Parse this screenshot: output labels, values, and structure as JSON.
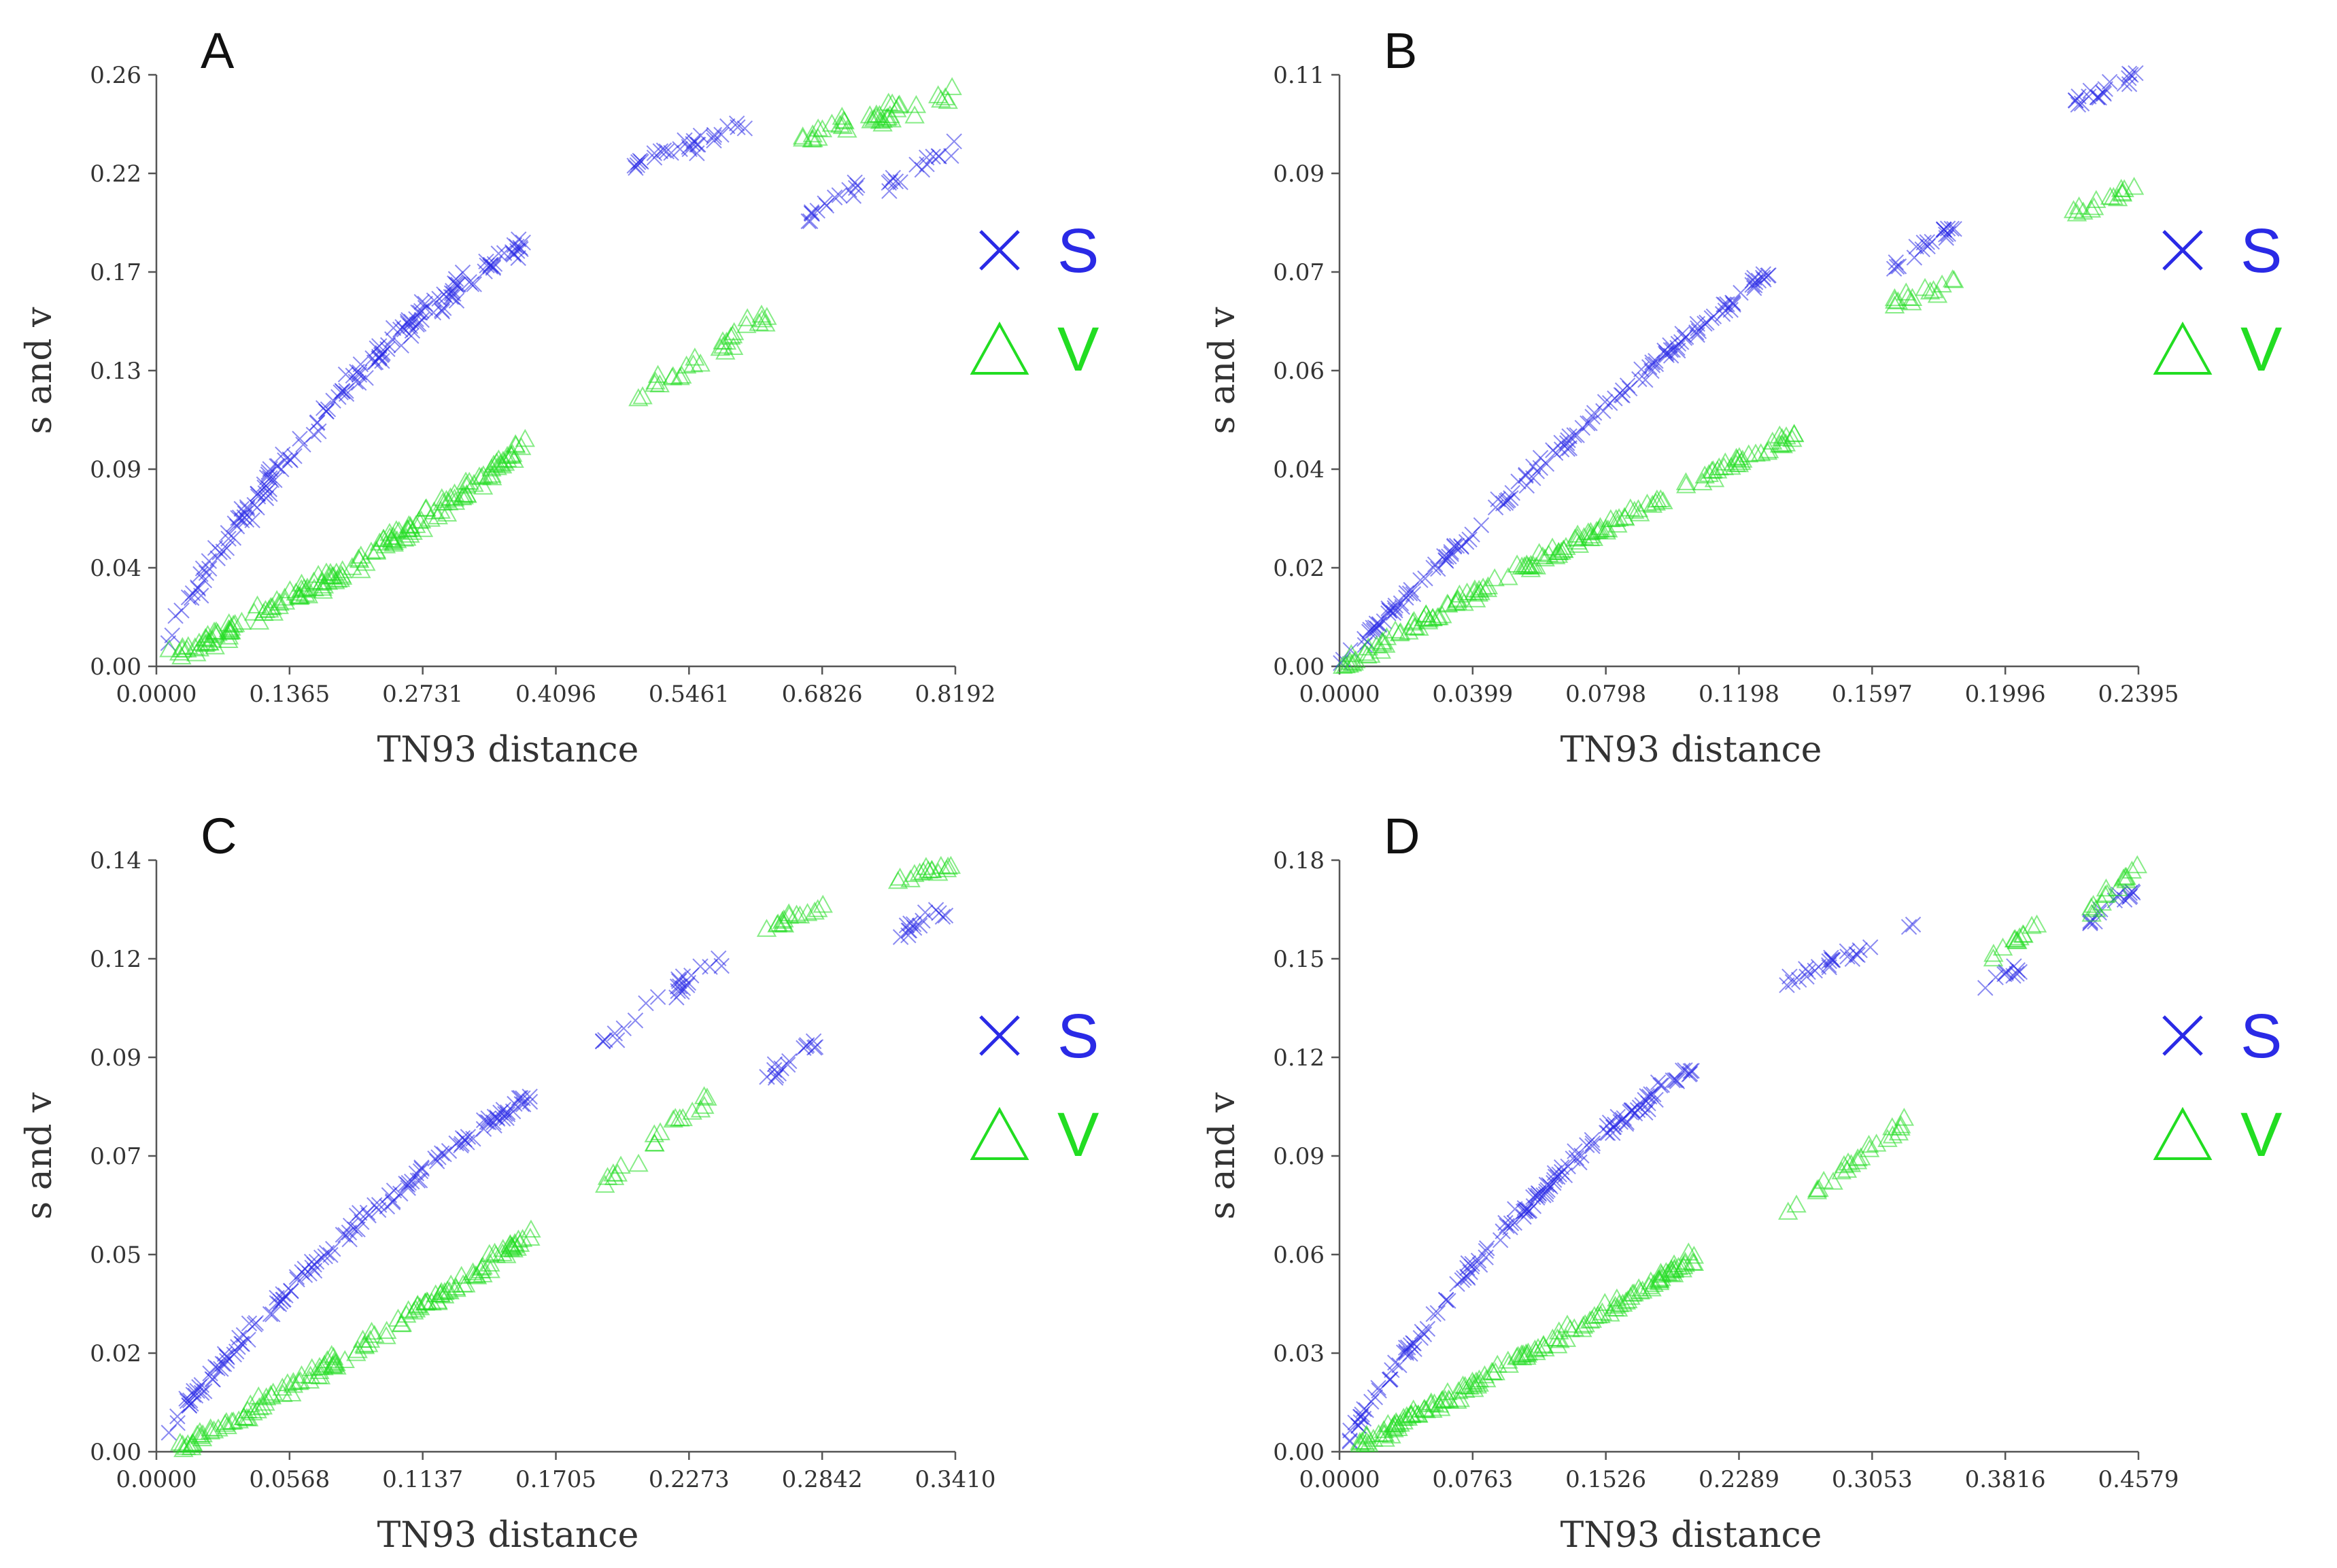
{
  "colors": {
    "S": "#2a2ae6",
    "V": "#22dd22"
  },
  "legend": [
    {
      "label": "S",
      "marker": "cross",
      "icon": "cross-icon"
    },
    {
      "label": "V",
      "marker": "triangle",
      "icon": "triangle-icon"
    }
  ],
  "chart_data": [
    {
      "id": "A",
      "type": "scatter",
      "title": "A",
      "xlabel": "TN93 distance",
      "ylabel": "s and v",
      "xlim": [
        0,
        0.8192
      ],
      "ylim": [
        0,
        0.26
      ],
      "xticks": [
        "0.0000",
        "0.1365",
        "0.2731",
        "0.4096",
        "0.5461",
        "0.6826",
        "0.8192"
      ],
      "yticks": [
        "0.00",
        "0.04",
        "0.09",
        "0.13",
        "0.17",
        "0.22",
        "0.26"
      ],
      "series": [
        {
          "name": "S",
          "clusters": [
            {
              "x": [
                0.01,
                0.38
              ],
              "y0": 0.012,
              "y1": 0.185,
              "n": 170,
              "curve": 0.55,
              "noise": 0.008
            },
            {
              "x": [
                0.49,
                0.61
              ],
              "y0": 0.222,
              "y1": 0.238,
              "n": 30,
              "noise": 0.006
            },
            {
              "x": [
                0.66,
                0.72
              ],
              "y0": 0.195,
              "y1": 0.212,
              "n": 15,
              "noise": 0.005
            },
            {
              "x": [
                0.75,
                0.82
              ],
              "y0": 0.212,
              "y1": 0.228,
              "n": 15,
              "noise": 0.005
            }
          ]
        },
        {
          "name": "V",
          "clusters": [
            {
              "x": [
                0.01,
                0.38
              ],
              "y0": 0.004,
              "y1": 0.098,
              "n": 170,
              "curve": -0.3,
              "noise": 0.006
            },
            {
              "x": [
                0.49,
                0.63
              ],
              "y0": 0.118,
              "y1": 0.155,
              "n": 30,
              "noise": 0.006
            },
            {
              "x": [
                0.66,
                0.82
              ],
              "y0": 0.232,
              "y1": 0.252,
              "n": 40,
              "noise": 0.006
            }
          ]
        }
      ]
    },
    {
      "id": "B",
      "type": "scatter",
      "title": "B",
      "xlabel": "TN93 distance",
      "ylabel": "s and v",
      "xlim": [
        0,
        0.2395
      ],
      "ylim": [
        0,
        0.11
      ],
      "xticks": [
        "0.0000",
        "0.0399",
        "0.0798",
        "0.1198",
        "0.1597",
        "0.1996",
        "0.2395"
      ],
      "yticks": [
        "0.00",
        "0.02",
        "0.04",
        "0.06",
        "0.07",
        "0.09",
        "0.11"
      ],
      "series": [
        {
          "name": "S",
          "clusters": [
            {
              "x": [
                0.0,
                0.13
              ],
              "y0": 0.0,
              "y1": 0.074,
              "n": 150,
              "curve": 0.15,
              "noise": 0.002
            },
            {
              "x": [
                0.165,
                0.185
              ],
              "y0": 0.074,
              "y1": 0.082,
              "n": 20,
              "noise": 0.002
            },
            {
              "x": [
                0.22,
                0.2395
              ],
              "y0": 0.104,
              "y1": 0.11,
              "n": 20,
              "noise": 0.002
            }
          ]
        },
        {
          "name": "V",
          "clusters": [
            {
              "x": [
                0.0,
                0.14
              ],
              "y0": 0.0,
              "y1": 0.044,
              "n": 150,
              "curve": 0.1,
              "noise": 0.002
            },
            {
              "x": [
                0.165,
                0.185
              ],
              "y0": 0.067,
              "y1": 0.072,
              "n": 15,
              "noise": 0.002
            },
            {
              "x": [
                0.22,
                0.2395
              ],
              "y0": 0.084,
              "y1": 0.09,
              "n": 15,
              "noise": 0.002
            }
          ]
        }
      ]
    },
    {
      "id": "C",
      "type": "scatter",
      "title": "C",
      "xlabel": "TN93 distance",
      "ylabel": "s and v",
      "xlim": [
        0,
        0.341
      ],
      "ylim": [
        0,
        0.14
      ],
      "xticks": [
        "0.0000",
        "0.0568",
        "0.1137",
        "0.1705",
        "0.2273",
        "0.2842",
        "0.3410"
      ],
      "yticks": [
        "0.00",
        "0.02",
        "0.05",
        "0.07",
        "0.09",
        "0.12",
        "0.14"
      ],
      "series": [
        {
          "name": "S",
          "clusters": [
            {
              "x": [
                0.005,
                0.16
              ],
              "y0": 0.006,
              "y1": 0.084,
              "n": 140,
              "curve": 0.35,
              "noise": 0.003
            },
            {
              "x": [
                0.19,
                0.245
              ],
              "y0": 0.097,
              "y1": 0.118,
              "n": 25,
              "noise": 0.003
            },
            {
              "x": [
                0.26,
                0.285
              ],
              "y0": 0.088,
              "y1": 0.098,
              "n": 15,
              "noise": 0.003
            },
            {
              "x": [
                0.315,
                0.341
              ],
              "y0": 0.122,
              "y1": 0.13,
              "n": 15,
              "noise": 0.003
            }
          ]
        },
        {
          "name": "V",
          "clusters": [
            {
              "x": [
                0.01,
                0.16
              ],
              "y0": 0.001,
              "y1": 0.052,
              "n": 140,
              "curve": -0.15,
              "noise": 0.003
            },
            {
              "x": [
                0.19,
                0.24
              ],
              "y0": 0.063,
              "y1": 0.086,
              "n": 20,
              "noise": 0.003
            },
            {
              "x": [
                0.26,
                0.285
              ],
              "y0": 0.124,
              "y1": 0.13,
              "n": 15,
              "noise": 0.002
            },
            {
              "x": [
                0.315,
                0.341
              ],
              "y0": 0.135,
              "y1": 0.139,
              "n": 15,
              "noise": 0.002
            }
          ]
        }
      ]
    },
    {
      "id": "D",
      "type": "scatter",
      "title": "D",
      "xlabel": "TN93 distance",
      "ylabel": "s and v",
      "xlim": [
        0,
        0.4579
      ],
      "ylim": [
        0,
        0.18
      ],
      "xticks": [
        "0.0000",
        "0.0763",
        "0.1526",
        "0.2289",
        "0.3053",
        "0.3816",
        "0.4579"
      ],
      "yticks": [
        "0.00",
        "0.03",
        "0.06",
        "0.09",
        "0.12",
        "0.15",
        "0.18"
      ],
      "series": [
        {
          "name": "S",
          "clusters": [
            {
              "x": [
                0.005,
                0.205
              ],
              "y0": 0.004,
              "y1": 0.117,
              "n": 150,
              "curve": 0.45,
              "noise": 0.004
            },
            {
              "x": [
                0.255,
                0.33
              ],
              "y0": 0.143,
              "y1": 0.16,
              "n": 25,
              "noise": 0.003
            },
            {
              "x": [
                0.37,
                0.39
              ],
              "y0": 0.142,
              "y1": 0.147,
              "n": 10,
              "noise": 0.003
            },
            {
              "x": [
                0.43,
                0.4579
              ],
              "y0": 0.162,
              "y1": 0.172,
              "n": 15,
              "noise": 0.003
            }
          ]
        },
        {
          "name": "V",
          "clusters": [
            {
              "x": [
                0.01,
                0.205
              ],
              "y0": 0.002,
              "y1": 0.06,
              "n": 150,
              "curve": -0.1,
              "noise": 0.003
            },
            {
              "x": [
                0.255,
                0.33
              ],
              "y0": 0.072,
              "y1": 0.103,
              "n": 25,
              "noise": 0.003
            },
            {
              "x": [
                0.37,
                0.4
              ],
              "y0": 0.15,
              "y1": 0.16,
              "n": 12,
              "noise": 0.003
            },
            {
              "x": [
                0.43,
                0.4579
              ],
              "y0": 0.165,
              "y1": 0.178,
              "n": 15,
              "noise": 0.003
            }
          ]
        }
      ]
    }
  ]
}
